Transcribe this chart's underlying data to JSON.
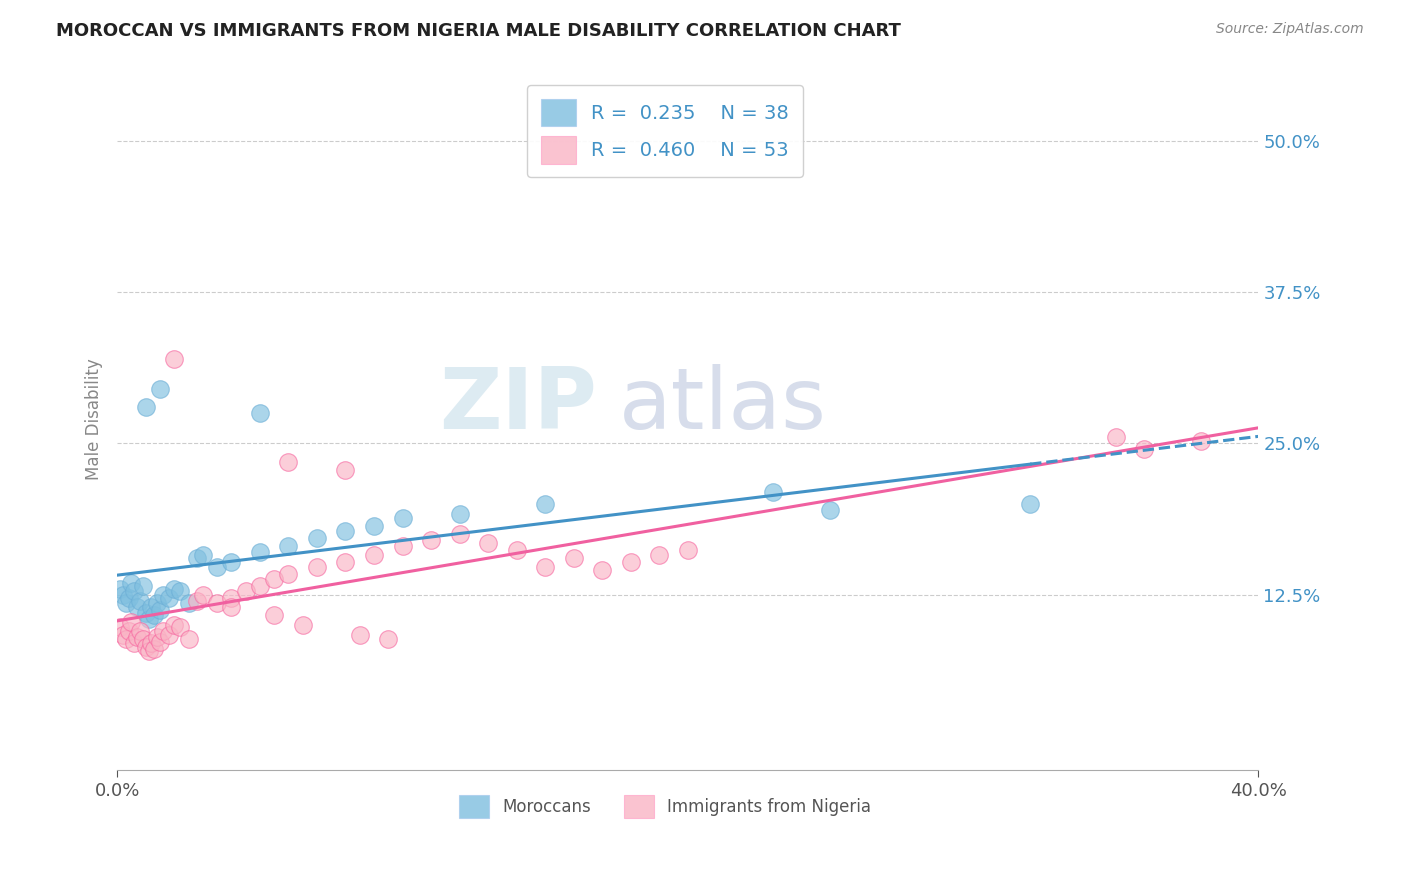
{
  "title": "MOROCCAN VS IMMIGRANTS FROM NIGERIA MALE DISABILITY CORRELATION CHART",
  "source": "Source: ZipAtlas.com",
  "ylabel": "Male Disability",
  "watermark_zip": "ZIP",
  "watermark_atlas": "atlas",
  "legend": {
    "moroccan": {
      "R": 0.235,
      "N": 38
    },
    "nigerian": {
      "R": 0.46,
      "N": 53
    }
  },
  "x_range": [
    0.0,
    0.4
  ],
  "y_range": [
    -0.02,
    0.56
  ],
  "y_ticks": [
    0.125,
    0.25,
    0.375,
    0.5
  ],
  "y_tick_labels": [
    "12.5%",
    "25.0%",
    "37.5%",
    "50.0%"
  ],
  "moroccan_scatter": [
    [
      0.001,
      0.13
    ],
    [
      0.002,
      0.125
    ],
    [
      0.003,
      0.118
    ],
    [
      0.004,
      0.122
    ],
    [
      0.005,
      0.135
    ],
    [
      0.006,
      0.128
    ],
    [
      0.007,
      0.115
    ],
    [
      0.008,
      0.12
    ],
    [
      0.009,
      0.132
    ],
    [
      0.01,
      0.11
    ],
    [
      0.011,
      0.105
    ],
    [
      0.012,
      0.115
    ],
    [
      0.013,
      0.108
    ],
    [
      0.014,
      0.118
    ],
    [
      0.015,
      0.112
    ],
    [
      0.016,
      0.125
    ],
    [
      0.018,
      0.122
    ],
    [
      0.02,
      0.13
    ],
    [
      0.022,
      0.128
    ],
    [
      0.025,
      0.118
    ],
    [
      0.028,
      0.155
    ],
    [
      0.03,
      0.158
    ],
    [
      0.035,
      0.148
    ],
    [
      0.04,
      0.152
    ],
    [
      0.05,
      0.16
    ],
    [
      0.06,
      0.165
    ],
    [
      0.07,
      0.172
    ],
    [
      0.08,
      0.178
    ],
    [
      0.09,
      0.182
    ],
    [
      0.1,
      0.188
    ],
    [
      0.12,
      0.192
    ],
    [
      0.01,
      0.28
    ],
    [
      0.015,
      0.295
    ],
    [
      0.05,
      0.275
    ],
    [
      0.15,
      0.2
    ],
    [
      0.23,
      0.21
    ],
    [
      0.32,
      0.2
    ],
    [
      0.25,
      0.195
    ]
  ],
  "nigerian_scatter": [
    [
      0.001,
      0.098
    ],
    [
      0.002,
      0.092
    ],
    [
      0.003,
      0.088
    ],
    [
      0.004,
      0.095
    ],
    [
      0.005,
      0.102
    ],
    [
      0.006,
      0.085
    ],
    [
      0.007,
      0.09
    ],
    [
      0.008,
      0.095
    ],
    [
      0.009,
      0.088
    ],
    [
      0.01,
      0.082
    ],
    [
      0.011,
      0.078
    ],
    [
      0.012,
      0.085
    ],
    [
      0.013,
      0.08
    ],
    [
      0.014,
      0.09
    ],
    [
      0.015,
      0.086
    ],
    [
      0.016,
      0.095
    ],
    [
      0.018,
      0.092
    ],
    [
      0.02,
      0.1
    ],
    [
      0.022,
      0.098
    ],
    [
      0.025,
      0.088
    ],
    [
      0.028,
      0.12
    ],
    [
      0.03,
      0.125
    ],
    [
      0.035,
      0.118
    ],
    [
      0.04,
      0.122
    ],
    [
      0.045,
      0.128
    ],
    [
      0.05,
      0.132
    ],
    [
      0.055,
      0.138
    ],
    [
      0.06,
      0.142
    ],
    [
      0.07,
      0.148
    ],
    [
      0.08,
      0.152
    ],
    [
      0.09,
      0.158
    ],
    [
      0.1,
      0.165
    ],
    [
      0.11,
      0.17
    ],
    [
      0.12,
      0.175
    ],
    [
      0.13,
      0.168
    ],
    [
      0.14,
      0.162
    ],
    [
      0.15,
      0.148
    ],
    [
      0.16,
      0.155
    ],
    [
      0.17,
      0.145
    ],
    [
      0.18,
      0.152
    ],
    [
      0.19,
      0.158
    ],
    [
      0.2,
      0.162
    ],
    [
      0.02,
      0.32
    ],
    [
      0.06,
      0.235
    ],
    [
      0.08,
      0.228
    ],
    [
      0.04,
      0.115
    ],
    [
      0.055,
      0.108
    ],
    [
      0.065,
      0.1
    ],
    [
      0.085,
      0.092
    ],
    [
      0.095,
      0.088
    ],
    [
      0.35,
      0.255
    ],
    [
      0.38,
      0.252
    ],
    [
      0.36,
      0.245
    ]
  ],
  "moroccan_color": "#7fbfdf",
  "moroccan_edge": "#6baed6",
  "nigerian_color": "#f9b4c5",
  "nigerian_edge": "#f768a1",
  "moroccan_line_color": "#4292c6",
  "nigerian_line_color": "#f060a0",
  "background_color": "#ffffff",
  "grid_color": "#cccccc",
  "title_color": "#222222",
  "source_color": "#888888",
  "tick_label_color": "#4292c6",
  "x_tick_color": "#555555",
  "ylabel_color": "#888888"
}
